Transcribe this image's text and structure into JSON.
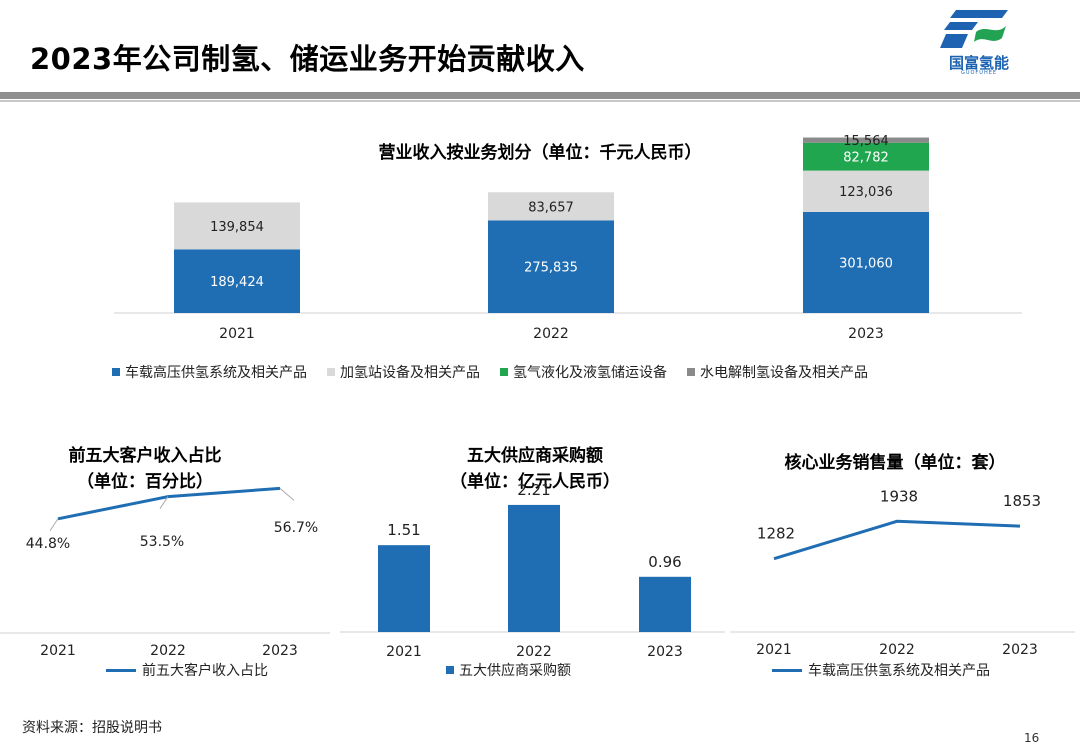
{
  "page": {
    "title": "2023年公司制氢、储运业务开始贡献收入",
    "logo_name": "国富氢能",
    "logo_sub": "GUOFUHEE",
    "source": "资料来源：招股说明书",
    "page_number": "16"
  },
  "colors": {
    "blue": "#1f6db3",
    "light_gray": "#d9d9d9",
    "green": "#1fa64e",
    "dark_gray": "#8a8a8a"
  },
  "chart_data": [
    {
      "type": "bar",
      "stacked": true,
      "title": "营业收入按业务划分（单位：千元人民币）",
      "categories": [
        "2021",
        "2022",
        "2023"
      ],
      "series": [
        {
          "name": "车载高压供氢系统及相关产品",
          "values": [
            189424,
            275835,
            301060
          ],
          "labels": [
            "189,424",
            "275,835",
            "301,060"
          ],
          "color": "#1f6db3"
        },
        {
          "name": "加氢站设备及相关产品",
          "values": [
            139854,
            83657,
            123036
          ],
          "labels": [
            "139,854",
            "83,657",
            "123,036"
          ],
          "color": "#d9d9d9"
        },
        {
          "name": "氢气液化及液氢储运设备",
          "values": [
            0,
            0,
            82782
          ],
          "labels": [
            "",
            "",
            "82,782"
          ],
          "color": "#1fa64e"
        },
        {
          "name": "水电解制氢设备及相关产品",
          "values": [
            0,
            0,
            15564
          ],
          "labels": [
            "",
            "",
            "15,564"
          ],
          "color": "#8a8a8a"
        }
      ],
      "ylim": [
        0,
        530000
      ]
    },
    {
      "type": "line",
      "title": "前五大客户收入占比",
      "subtitle": "（单位：百分比）",
      "categories": [
        "2021",
        "2022",
        "2023"
      ],
      "series": [
        {
          "name": "前五大客户收入占比",
          "values": [
            44.8,
            53.5,
            56.7
          ],
          "labels": [
            "44.8%",
            "53.5%",
            "56.7%"
          ],
          "color": "#1f6db3"
        }
      ],
      "ylim": [
        0,
        60
      ]
    },
    {
      "type": "bar",
      "title": "五大供应商采购额",
      "subtitle": "（单位：亿元人民币）",
      "categories": [
        "2021",
        "2022",
        "2023"
      ],
      "series": [
        {
          "name": "五大供应商采购额",
          "values": [
            1.51,
            2.21,
            0.96
          ],
          "labels": [
            "1.51",
            "2.21",
            "0.96"
          ],
          "color": "#1f6db3"
        }
      ],
      "ylim": [
        0,
        2.4
      ]
    },
    {
      "type": "line",
      "title": "核心业务销售量（单位：套）",
      "categories": [
        "2021",
        "2022",
        "2023"
      ],
      "series": [
        {
          "name": "车载高压供氢系统及相关产品",
          "values": [
            1282,
            1938,
            1853
          ],
          "labels": [
            "1282",
            "1938",
            "1853"
          ],
          "color": "#1f6db3"
        }
      ],
      "ylim": [
        0,
        2100
      ]
    }
  ]
}
